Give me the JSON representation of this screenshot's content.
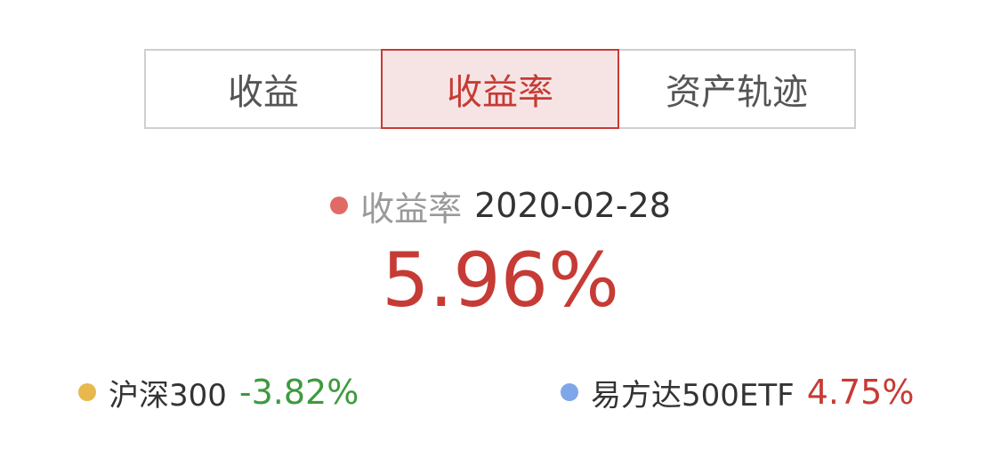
{
  "tabs": [
    {
      "label": "收益",
      "active": false
    },
    {
      "label": "收益率",
      "active": true
    },
    {
      "label": "资产轨迹",
      "active": false
    }
  ],
  "summary": {
    "label": "收益率",
    "date": "2020-02-28",
    "value": "5.96%",
    "dot_color": "#e06b66",
    "value_color": "#c63b35"
  },
  "legend": [
    {
      "name": "沪深300",
      "value": "-3.82%",
      "dot_color": "#e7b84d",
      "value_color": "#3e9a3e"
    },
    {
      "name": "易方达500ETF",
      "value": "4.75%",
      "dot_color": "#7fa6e8",
      "value_color": "#c63b35"
    }
  ]
}
